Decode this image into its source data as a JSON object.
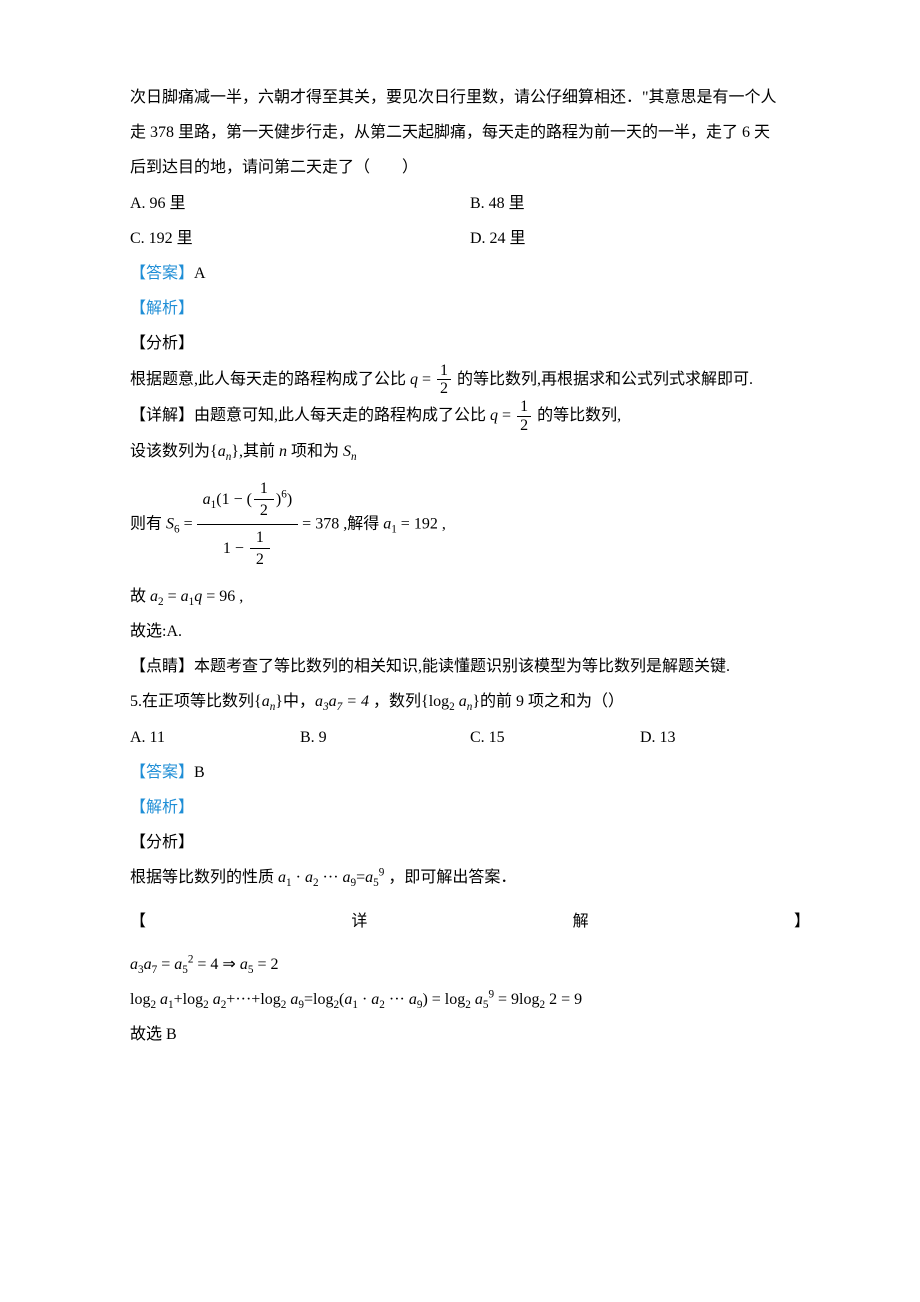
{
  "q4": {
    "stem_line1": "次日脚痛减一半，六朝才得至其关，要见次日行里数，请公仔细算相还．\"其意思是有一个人",
    "stem_line2": "走 378 里路，第一天健步行走，从第二天起脚痛，每天走的路程为前一天的一半，走了 6 天",
    "stem_line3": "后到达目的地，请问第二天走了（　　）",
    "choices": {
      "A": "A. 96 里",
      "B": "B. 48 里",
      "C": "C. 192 里",
      "D": "D. 24 里"
    },
    "answer_label": "【答案】",
    "answer_value": "A",
    "jiexi": "【解析】",
    "fenxi": "【分析】",
    "analysis_pre": "根据题意,此人每天走的路程构成了公比 ",
    "analysis_q": "q",
    "analysis_eq": " = ",
    "analysis_half_num": "1",
    "analysis_half_den": "2",
    "analysis_post": " 的等比数列,再根据求和公式列式求解即可.",
    "detail_label": "【详解】",
    "detail_pre": "由题意可知,此人每天走的路程构成了公比 ",
    "detail_post": " 的等比数列,",
    "set_seq_pre": "设该数列为",
    "set_seq_brace_l": "{",
    "set_seq_a": "a",
    "set_seq_sub": "n",
    "set_seq_brace_r": "}",
    "set_seq_mid": ",其前 ",
    "set_seq_n": "n",
    "set_seq_mid2": " 项和为 ",
    "set_seq_S": "S",
    "s6_pre": "则有 ",
    "s6_S": "S",
    "s6_sub": "6",
    "s6_eq": " = ",
    "s6_num": "a₁(1 − (½)⁶)",
    "s6_den_text_pre": "1 − ",
    "s6_result": " = 378 ,解得 ",
    "s6_a1": "a",
    "s6_a1sub": "1",
    "s6_a1val": " = 192 ,",
    "a2_pre": "故 ",
    "a2_a": "a",
    "a2_sub2": "2",
    "a2_eq": " = ",
    "a2_a1": "a",
    "a2_sub1": "1",
    "a2_q": "q",
    "a2_val": " = 96 ,",
    "select": "故选:A.",
    "dianjing": "【点睛】本题考查了等比数列的相关知识,能读懂题识别该模型为等比数列是解题关键."
  },
  "q5": {
    "stem_num": "5.",
    "stem_pre": "在正项等比数列",
    "stem_brace_l": "{",
    "stem_a": "a",
    "stem_sub": "n",
    "stem_brace_r": "}",
    "stem_mid": "中，",
    "stem_a3a7": "a₃a₇ = 4",
    "stem_mid2": " ，数列",
    "stem_log": "log",
    "stem_log_base": "2",
    "stem_post": "的前 9 项之和为（）",
    "choices": {
      "A": "A.  11",
      "B": "B.  9",
      "C": "C.  15",
      "D": "D.  13"
    },
    "answer_label": "【答案】",
    "answer_value": "B",
    "jiexi": "【解析】",
    "fenxi": "【分析】",
    "analysis_pre": "根据等比数列的性质 ",
    "analysis_prod": "a₁ · a₂ ··· a₉ = a₅⁹",
    "analysis_post": " ，即可解出答案．",
    "detail_open": "【",
    "detail_mid": "详",
    "detail_mid2": "解",
    "detail_close": "】",
    "eq1": "a₃a₇ = a₅² = 4 ⇒ a₅ = 2",
    "eq2": "log₂ a₁ + log₂ a₂ + ··· + log₂ a₉ = log₂(a₁ · a₂ ··· a₉) = log₂ a₅⁹ = 9log₂ 2 = 9",
    "select": "故选 B"
  },
  "colors": {
    "link": "#1f8ed6",
    "text": "#000000",
    "bg": "#ffffff"
  }
}
